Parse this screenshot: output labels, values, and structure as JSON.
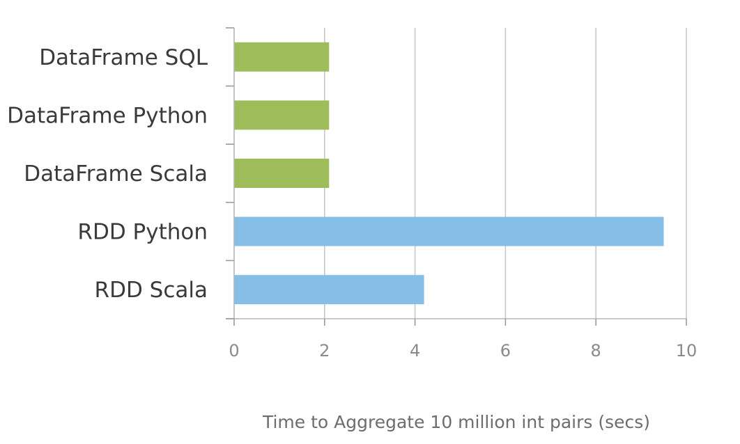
{
  "chart_data": {
    "type": "bar",
    "orientation": "horizontal",
    "categories": [
      "DataFrame SQL",
      "DataFrame Python",
      "DataFrame Scala",
      "RDD Python",
      "RDD Scala"
    ],
    "values": [
      2.1,
      2.1,
      2.1,
      9.5,
      4.2
    ],
    "bar_colors": [
      "#9fbc5b",
      "#9fbc5b",
      "#9fbc5b",
      "#85bfe5",
      "#85bfe5"
    ],
    "title": "",
    "xlabel": "Time to Aggregate 10 million int pairs (secs)",
    "ylabel": "",
    "xlim": [
      0,
      10
    ],
    "x_ticks": [
      "0",
      "2",
      "4",
      "6",
      "8",
      "10"
    ],
    "grid": "vertical",
    "legend": "none"
  }
}
